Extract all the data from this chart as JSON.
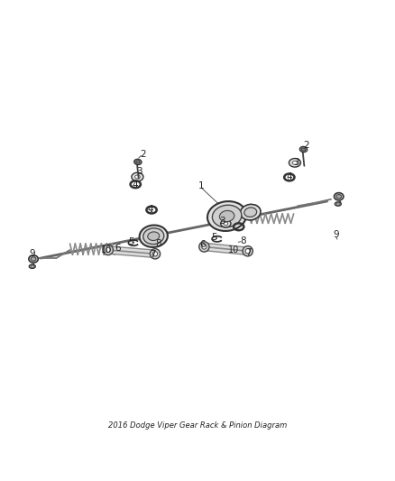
{
  "title": "2016 Dodge Viper Gear Rack & Pinion Diagram",
  "bg_color": "#ffffff",
  "line_color": "#333333",
  "part_color": "#555555",
  "label_color": "#222222",
  "figsize": [
    4.38,
    5.33
  ],
  "dpi": 100
}
